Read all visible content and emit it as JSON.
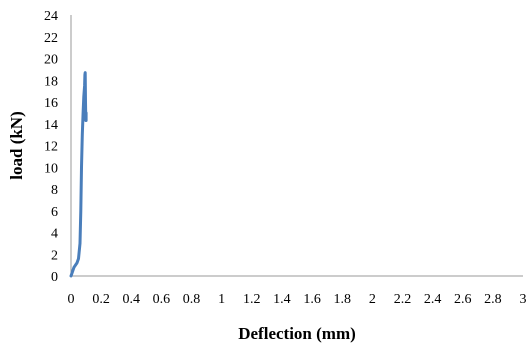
{
  "chart_data": {
    "type": "line",
    "title": "",
    "xlabel": "Deflection (mm)",
    "ylabel": "load (kN)",
    "xlim": [
      0,
      3
    ],
    "ylim": [
      0,
      24
    ],
    "xticks": [
      "0",
      "0.2",
      "0.4",
      "0.6",
      "0.8",
      "1",
      "1.2",
      "1.4",
      "1.6",
      "1.8",
      "2",
      "2.2",
      "2.4",
      "2.6",
      "2.8",
      "3"
    ],
    "yticks": [
      "0",
      "2",
      "4",
      "6",
      "8",
      "10",
      "12",
      "14",
      "16",
      "18",
      "20",
      "22",
      "24"
    ],
    "grid": false,
    "legend": "none",
    "series": [
      {
        "color": "#4a7ebb",
        "x": [
          0.0,
          0.01,
          0.02,
          0.04,
          0.05,
          0.06,
          0.065,
          0.07,
          0.075,
          0.08,
          0.085,
          0.09,
          0.092,
          0.094,
          0.096,
          0.098,
          0.1,
          0.1
        ],
        "y": [
          0.0,
          0.4,
          0.8,
          1.2,
          1.6,
          3.0,
          6.0,
          10.0,
          13.0,
          15.0,
          16.5,
          17.5,
          18.5,
          18.7,
          16.0,
          14.3,
          15.0,
          14.3
        ]
      }
    ]
  }
}
